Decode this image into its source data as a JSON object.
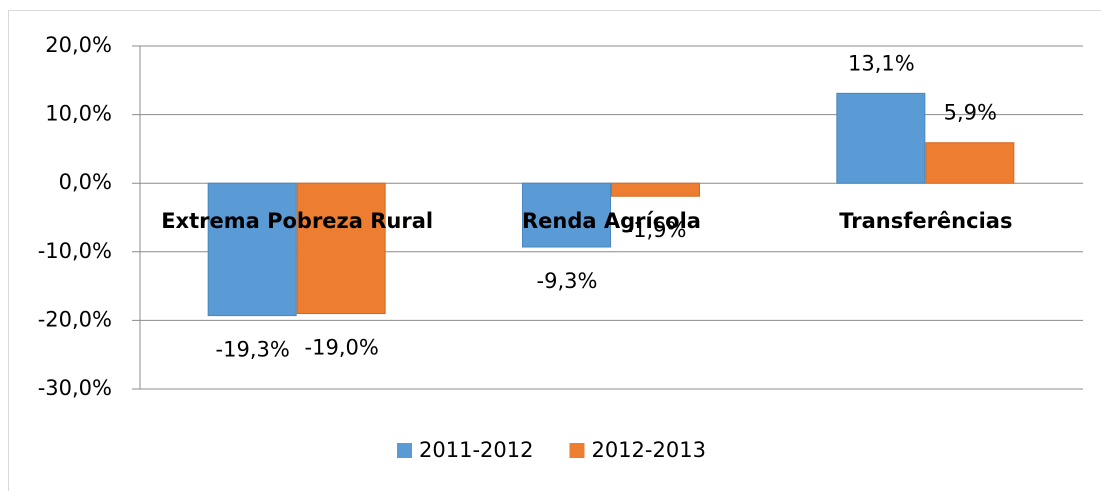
{
  "chart_data": {
    "type": "bar",
    "categories": [
      "Extrema Pobreza Rural",
      "Renda Agrícola",
      "Transferências"
    ],
    "series": [
      {
        "name": "2011-2012",
        "color": "#5b9bd5",
        "values": [
          -19.3,
          -9.3,
          13.1
        ],
        "value_labels": [
          "-19,3%",
          "-9,3%",
          "13,1%"
        ]
      },
      {
        "name": "2012-2013",
        "color": "#ed7d31",
        "values": [
          -19.0,
          -1.9,
          5.9
        ],
        "value_labels": [
          "-19,0%",
          "-1,9%",
          "5,9%"
        ]
      }
    ],
    "ylim": [
      -30,
      20
    ],
    "yticks": [
      {
        "value": -30,
        "label": "-30,0%"
      },
      {
        "value": -20,
        "label": "-20,0%"
      },
      {
        "value": -10,
        "label": "-10,0%"
      },
      {
        "value": 0,
        "label": "0,0%"
      },
      {
        "value": 10,
        "label": "10,0%"
      },
      {
        "value": 20,
        "label": "20,0%"
      }
    ],
    "grid": true,
    "legend": "bottom"
  }
}
